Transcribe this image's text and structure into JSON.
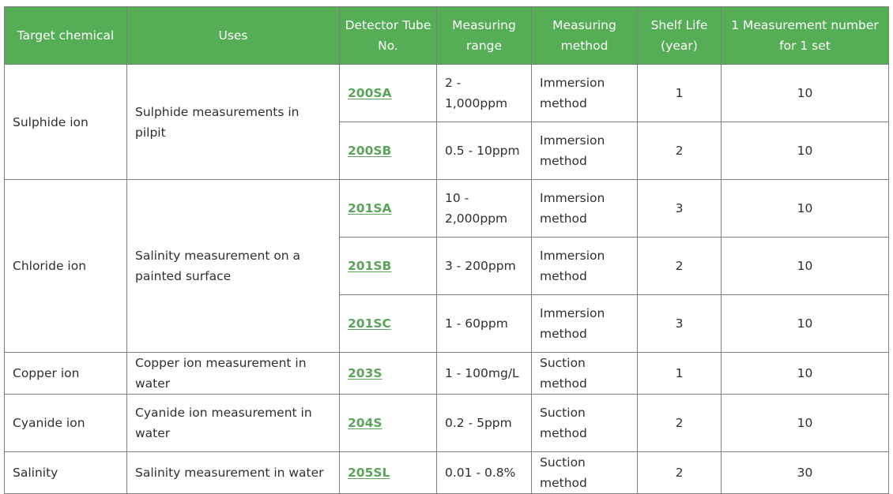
{
  "headers": {
    "target": "Target chemical",
    "uses": "Uses",
    "tube": "Detector Tube No.",
    "range": "Measuring range",
    "method": "Measuring method",
    "shelf": "Shelf Life (year)",
    "count": "1 Measurement number for 1 set"
  },
  "groups": {
    "sulphide": {
      "target": "Sulphide ion",
      "uses": "Sulphide measurements in pilpit"
    },
    "chloride": {
      "target": "Chloride ion",
      "uses": "Salinity measurement on a painted surface"
    },
    "copper": {
      "target": "Copper ion",
      "uses": "Copper ion measurement in water"
    },
    "cyanide": {
      "target": "Cyanide ion",
      "uses": "Cyanide ion measurement in water"
    },
    "salinity": {
      "target": "Salinity",
      "uses": "Salinity measurement in water"
    }
  },
  "rows": [
    {
      "tube": "200SA",
      "range": "2 - 1,000ppm",
      "method": "Immersion method",
      "shelf": "1",
      "count": "10"
    },
    {
      "tube": "200SB",
      "range": "0.5 - 10ppm",
      "method": "Immersion method",
      "shelf": "2",
      "count": "10"
    },
    {
      "tube": "201SA",
      "range": "10 - 2,000ppm",
      "method": "Immersion method",
      "shelf": "3",
      "count": "10"
    },
    {
      "tube": "201SB",
      "range": "3 - 200ppm",
      "method": "Immersion method",
      "shelf": "2",
      "count": "10"
    },
    {
      "tube": "201SC",
      "range": "1 - 60ppm",
      "method": "Immersion method",
      "shelf": "3",
      "count": "10"
    },
    {
      "tube": "203S",
      "range": "1 - 100mg/L",
      "method": "Suction method",
      "shelf": "1",
      "count": "10"
    },
    {
      "tube": "204S",
      "range": "0.2 - 5ppm",
      "method": "Suction method",
      "shelf": "2",
      "count": "10"
    },
    {
      "tube": "205SL",
      "range": "0.01 - 0.8%",
      "method": "Suction method",
      "shelf": "2",
      "count": "30"
    }
  ],
  "colors": {
    "header_bg": "#55ae55",
    "link": "#5aa55a",
    "border": "#7f7f7f"
  }
}
